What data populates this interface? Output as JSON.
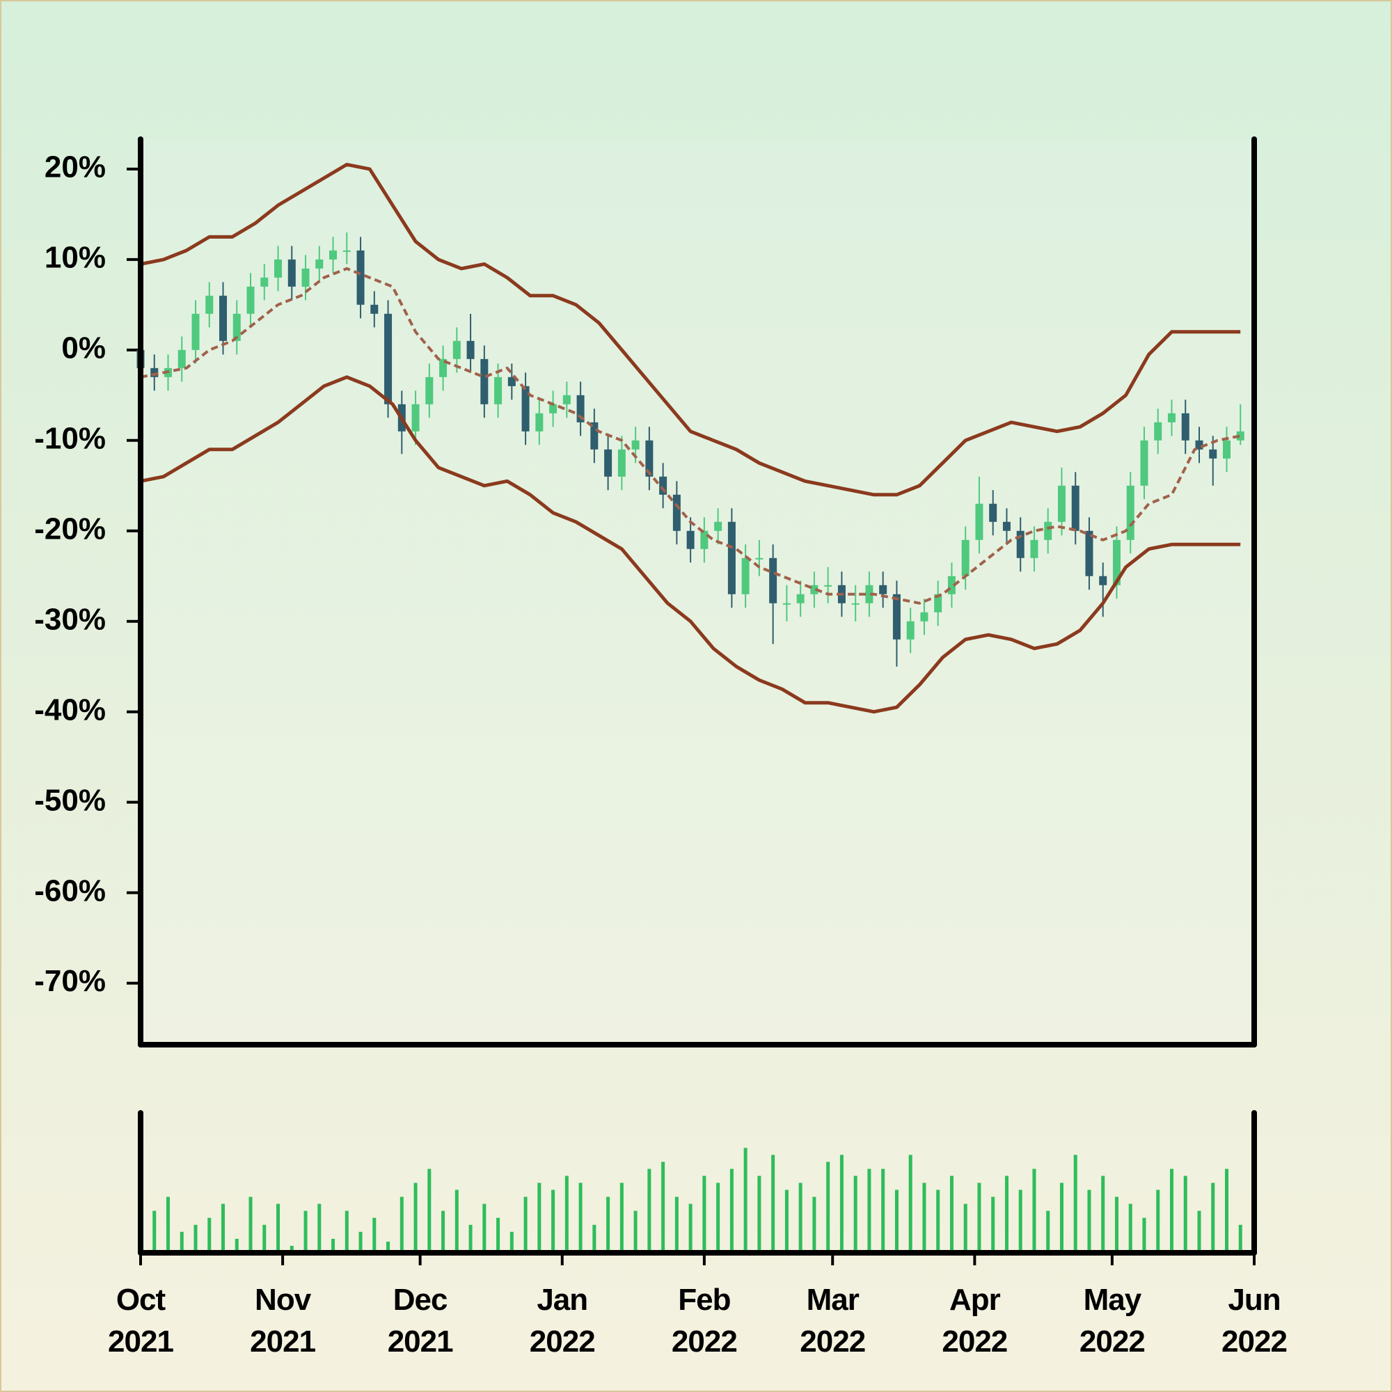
{
  "chart_data": [
    {
      "type": "candlestick",
      "x": [
        0,
        3,
        6,
        9,
        12,
        15,
        18,
        21,
        24,
        27,
        30,
        33,
        36,
        39,
        42,
        45,
        48,
        51,
        54,
        57,
        60,
        63,
        66,
        69,
        72,
        75,
        78,
        81,
        84,
        87,
        90,
        93,
        96,
        99,
        102,
        105,
        108,
        111,
        114,
        117,
        120,
        123,
        126,
        129,
        132,
        135,
        138,
        141,
        144,
        147,
        150,
        153,
        156,
        159,
        162,
        165,
        168,
        171,
        174,
        177,
        180,
        183,
        186,
        189,
        192,
        195,
        198,
        201,
        204,
        207,
        210,
        213,
        216,
        219,
        222,
        225,
        228,
        231,
        234,
        237,
        240
      ],
      "open": [
        0,
        -2,
        -3,
        -2,
        0,
        4,
        6,
        1,
        4,
        7,
        8,
        10,
        7,
        9,
        10,
        11,
        11,
        5,
        4,
        -6,
        -9,
        -6,
        -3,
        -1,
        1,
        -1,
        -6,
        -3,
        -4,
        -9,
        -7,
        -6,
        -5,
        -8,
        -11,
        -14,
        -11,
        -10,
        -14,
        -16,
        -20,
        -22,
        -20,
        -19,
        -27,
        -23,
        -23,
        -28,
        -28,
        -27,
        -26,
        -26,
        -28,
        -28,
        -26,
        -27,
        -32,
        -30,
        -29,
        -27,
        -25,
        -21,
        -17,
        -19,
        -20,
        -23,
        -21,
        -19,
        -15,
        -20,
        -25,
        -26,
        -21,
        -15,
        -10,
        -8,
        -7,
        -10,
        -11,
        -12,
        -10
      ],
      "high": [
        1.5,
        -0.5,
        -0.5,
        1.5,
        5.5,
        7.5,
        7.5,
        5.5,
        8.5,
        9.5,
        11.5,
        11.5,
        10.5,
        11.5,
        12.5,
        13,
        12.5,
        6.5,
        5.5,
        -4.5,
        -4.5,
        -1.5,
        0.5,
        2.5,
        4,
        0.5,
        -1.5,
        -1.5,
        -2.5,
        -5.5,
        -4.5,
        -3.5,
        -3.5,
        -6.5,
        -9.5,
        -9.5,
        -8.5,
        -8.5,
        -12.5,
        -14.5,
        -18.5,
        -18.5,
        -17.5,
        -17.5,
        -21.5,
        -21,
        -21.5,
        -26,
        -25.5,
        -24.5,
        -24,
        -24.5,
        -26,
        -24.5,
        -24.5,
        -25.5,
        -28.5,
        -27.5,
        -25.5,
        -23.5,
        -19.5,
        -14,
        -15.5,
        -17.5,
        -18.5,
        -19.5,
        -17.5,
        -13,
        -13.5,
        -18.5,
        -23.5,
        -19.5,
        -13.5,
        -8.5,
        -6.5,
        -5.5,
        -5.5,
        -8.5,
        -9.5,
        -8.5,
        -6
      ],
      "low": [
        -3.5,
        -4.5,
        -4.5,
        -3.5,
        -1.5,
        2.5,
        -0.5,
        -0.5,
        2.5,
        5.5,
        6.5,
        5.5,
        5.5,
        7.5,
        8.5,
        9.5,
        3.5,
        2.5,
        -7.5,
        -11.5,
        -10.5,
        -7.5,
        -4.5,
        -2.5,
        -2.5,
        -7.5,
        -7.5,
        -5.5,
        -10.5,
        -10.5,
        -8.5,
        -7.5,
        -9.5,
        -12.5,
        -15.5,
        -15.5,
        -12.5,
        -15.5,
        -17.5,
        -21.5,
        -23.5,
        -23.5,
        -21.5,
        -28.5,
        -28.5,
        -25,
        -32.5,
        -30,
        -29.5,
        -28.5,
        -28,
        -29.5,
        -30,
        -29.5,
        -28.5,
        -35,
        -33.5,
        -31.5,
        -30.5,
        -28.5,
        -26.5,
        -22.5,
        -20.5,
        -21.5,
        -24.5,
        -24.5,
        -22.5,
        -20.5,
        -21.5,
        -26.5,
        -29.5,
        -27.5,
        -22.5,
        -16.5,
        -11.5,
        -9.5,
        -11.5,
        -12.5,
        -15,
        -13.5,
        -10.5
      ],
      "close": [
        -2,
        -3,
        -2,
        0,
        4,
        6,
        1,
        4,
        7,
        8,
        10,
        7,
        9,
        10,
        11,
        11,
        5,
        4,
        -6,
        -9,
        -6,
        -3,
        -1,
        1,
        -1,
        -6,
        -3,
        -4,
        -9,
        -7,
        -6,
        -5,
        -8,
        -11,
        -14,
        -11,
        -10,
        -14,
        -16,
        -20,
        -22,
        -20,
        -19,
        -27,
        -23,
        -23,
        -28,
        -28,
        -27,
        -26,
        -26,
        -28,
        -28,
        -26,
        -27,
        -32,
        -30,
        -29,
        -27,
        -25,
        -21,
        -17,
        -19,
        -20,
        -23,
        -21,
        -19,
        -15,
        -20,
        -25,
        -26,
        -21,
        -15,
        -10,
        -8,
        -7,
        -10,
        -11,
        -12,
        -10,
        -9
      ],
      "up_color": "#4fc97e",
      "down_color": "#2f5e6e",
      "xlim": [
        0,
        243
      ],
      "ylim": [
        -76.8,
        23.3
      ],
      "yticks": [
        {
          "value": 20,
          "label": "20%"
        },
        {
          "value": 10,
          "label": "10%"
        },
        {
          "value": 0,
          "label": "0%"
        },
        {
          "value": -10,
          "label": "-10%"
        },
        {
          "value": -20,
          "label": "-20%"
        },
        {
          "value": -30,
          "label": "-30%"
        },
        {
          "value": -40,
          "label": "-40%"
        },
        {
          "value": -50,
          "label": "-50%"
        },
        {
          "value": -60,
          "label": "-60%"
        },
        {
          "value": -70,
          "label": "-70%"
        }
      ],
      "bands": {
        "x": [
          0,
          5,
          10,
          15,
          20,
          25,
          30,
          35,
          40,
          45,
          50,
          55,
          60,
          65,
          70,
          75,
          80,
          85,
          90,
          95,
          100,
          105,
          110,
          115,
          120,
          125,
          130,
          135,
          140,
          145,
          150,
          155,
          160,
          165,
          170,
          175,
          180,
          185,
          190,
          195,
          200,
          205,
          210,
          215,
          220,
          225,
          230,
          235,
          240
        ],
        "series": [
          {
            "color": "#8b3a1e",
            "dashed": false,
            "values": [
              9.5,
              10,
              11,
              12.5,
              12.5,
              14,
              16,
              17.5,
              19,
              20.5,
              20,
              16,
              12,
              10,
              9,
              9.5,
              8,
              6,
              6,
              5,
              3,
              0,
              -3,
              -6,
              -9,
              -10,
              -11,
              -12.5,
              -13.5,
              -14.5,
              -15,
              -15.5,
              -16,
              -16,
              -15,
              -12.5,
              -10,
              -9,
              -8,
              -8.5,
              -9,
              -8.5,
              -7,
              -5,
              -0.5,
              2,
              2,
              2,
              2
            ]
          },
          {
            "color": "#a0614a",
            "dashed": true,
            "values": [
              -3,
              -2.5,
              -2,
              0,
              1,
              3,
              5,
              6,
              8,
              9,
              8,
              7,
              2,
              -1,
              -2,
              -3,
              -2,
              -5,
              -6,
              -7,
              -9,
              -10,
              -13,
              -16,
              -19,
              -21,
              -22,
              -24,
              -25,
              -26,
              -27,
              -27,
              -27,
              -27.5,
              -28,
              -27,
              -25,
              -23,
              -21,
              -20,
              -19.5,
              -20,
              -21,
              -20,
              -17,
              -16,
              -11,
              -10,
              -9.5
            ]
          },
          {
            "color": "#8b3a1e",
            "dashed": false,
            "values": [
              -14.5,
              -14,
              -12.5,
              -11,
              -11,
              -9.5,
              -8,
              -6,
              -4,
              -3,
              -4,
              -6,
              -10,
              -13,
              -14,
              -15,
              -14.5,
              -16,
              -18,
              -19,
              -20.5,
              -22,
              -25,
              -28,
              -30,
              -33,
              -35,
              -36.5,
              -37.5,
              -39,
              -39,
              -39.5,
              -40,
              -39.5,
              -37,
              -34,
              -32,
              -31.5,
              -32,
              -33,
              -32.5,
              -31,
              -28,
              -24,
              -22,
              -21.5,
              -21.5,
              -21.5,
              -21.5
            ]
          }
        ]
      }
    },
    {
      "type": "bar",
      "x": [
        0,
        3,
        6,
        9,
        12,
        15,
        18,
        21,
        24,
        27,
        30,
        33,
        36,
        39,
        42,
        45,
        48,
        51,
        54,
        57,
        60,
        63,
        66,
        69,
        72,
        75,
        78,
        81,
        84,
        87,
        90,
        93,
        96,
        99,
        102,
        105,
        108,
        111,
        114,
        117,
        120,
        123,
        126,
        129,
        132,
        135,
        138,
        141,
        144,
        147,
        150,
        153,
        156,
        159,
        162,
        165,
        168,
        171,
        174,
        177,
        180,
        183,
        186,
        189,
        192,
        195,
        198,
        201,
        204,
        207,
        210,
        213,
        216,
        219,
        222,
        225,
        228,
        231,
        234,
        237,
        240
      ],
      "values": [
        55,
        30,
        40,
        15,
        20,
        25,
        35,
        10,
        40,
        20,
        35,
        5,
        30,
        35,
        10,
        30,
        15,
        25,
        8,
        40,
        50,
        60,
        30,
        45,
        20,
        35,
        25,
        15,
        40,
        50,
        45,
        55,
        50,
        20,
        40,
        50,
        30,
        60,
        65,
        40,
        35,
        55,
        50,
        60,
        75,
        55,
        70,
        45,
        50,
        40,
        65,
        70,
        55,
        60,
        60,
        45,
        70,
        50,
        45,
        55,
        35,
        50,
        40,
        55,
        45,
        60,
        30,
        50,
        70,
        45,
        55,
        40,
        35,
        25,
        45,
        60,
        55,
        30,
        50,
        60,
        20
      ],
      "color": "#2ebd5a",
      "xlim": [
        0,
        243
      ],
      "ylim": [
        0,
        100
      ],
      "xticks": [
        {
          "value": 0,
          "label": "Oct\n2021"
        },
        {
          "value": 31,
          "label": "Nov\n2021"
        },
        {
          "value": 61,
          "label": "Dec\n2021"
        },
        {
          "value": 92,
          "label": "Jan\n2022"
        },
        {
          "value": 123,
          "label": "Feb\n2022"
        },
        {
          "value": 151,
          "label": "Mar\n2022"
        },
        {
          "value": 182,
          "label": "Apr\n2022"
        },
        {
          "value": 212,
          "label": "May\n2022"
        },
        {
          "value": 243,
          "label": "Jun\n2022"
        }
      ]
    }
  ]
}
